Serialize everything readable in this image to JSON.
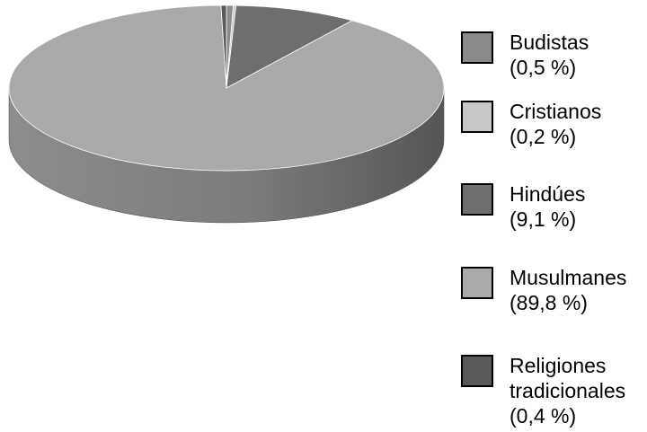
{
  "chart_data": {
    "type": "pie",
    "title": "",
    "style": "3d",
    "series": [
      {
        "name": "Budistas",
        "value_label": "(0,5 %)",
        "value": 0.5,
        "color": "#8a8a8a",
        "label_lines": [
          "Budistas"
        ]
      },
      {
        "name": "Cristianos",
        "value_label": "(0,2 %)",
        "value": 0.2,
        "color": "#c8c8c8",
        "label_lines": [
          "Cristianos"
        ]
      },
      {
        "name": "Hindúes",
        "value_label": "(9,1 %)",
        "value": 9.1,
        "color": "#6e6e6e",
        "label_lines": [
          "Hindúes"
        ]
      },
      {
        "name": "Musulmanes",
        "value_label": "(89,8 %)",
        "value": 89.8,
        "color": "#a9a9a9",
        "label_lines": [
          "Musulmanes"
        ]
      },
      {
        "name": "Religiones tradicionales",
        "value_label": "(0,4 %)",
        "value": 0.4,
        "color": "#5a5a5a",
        "label_lines": [
          "Religiones",
          "tradicionales"
        ]
      }
    ],
    "legend_position": "right"
  }
}
